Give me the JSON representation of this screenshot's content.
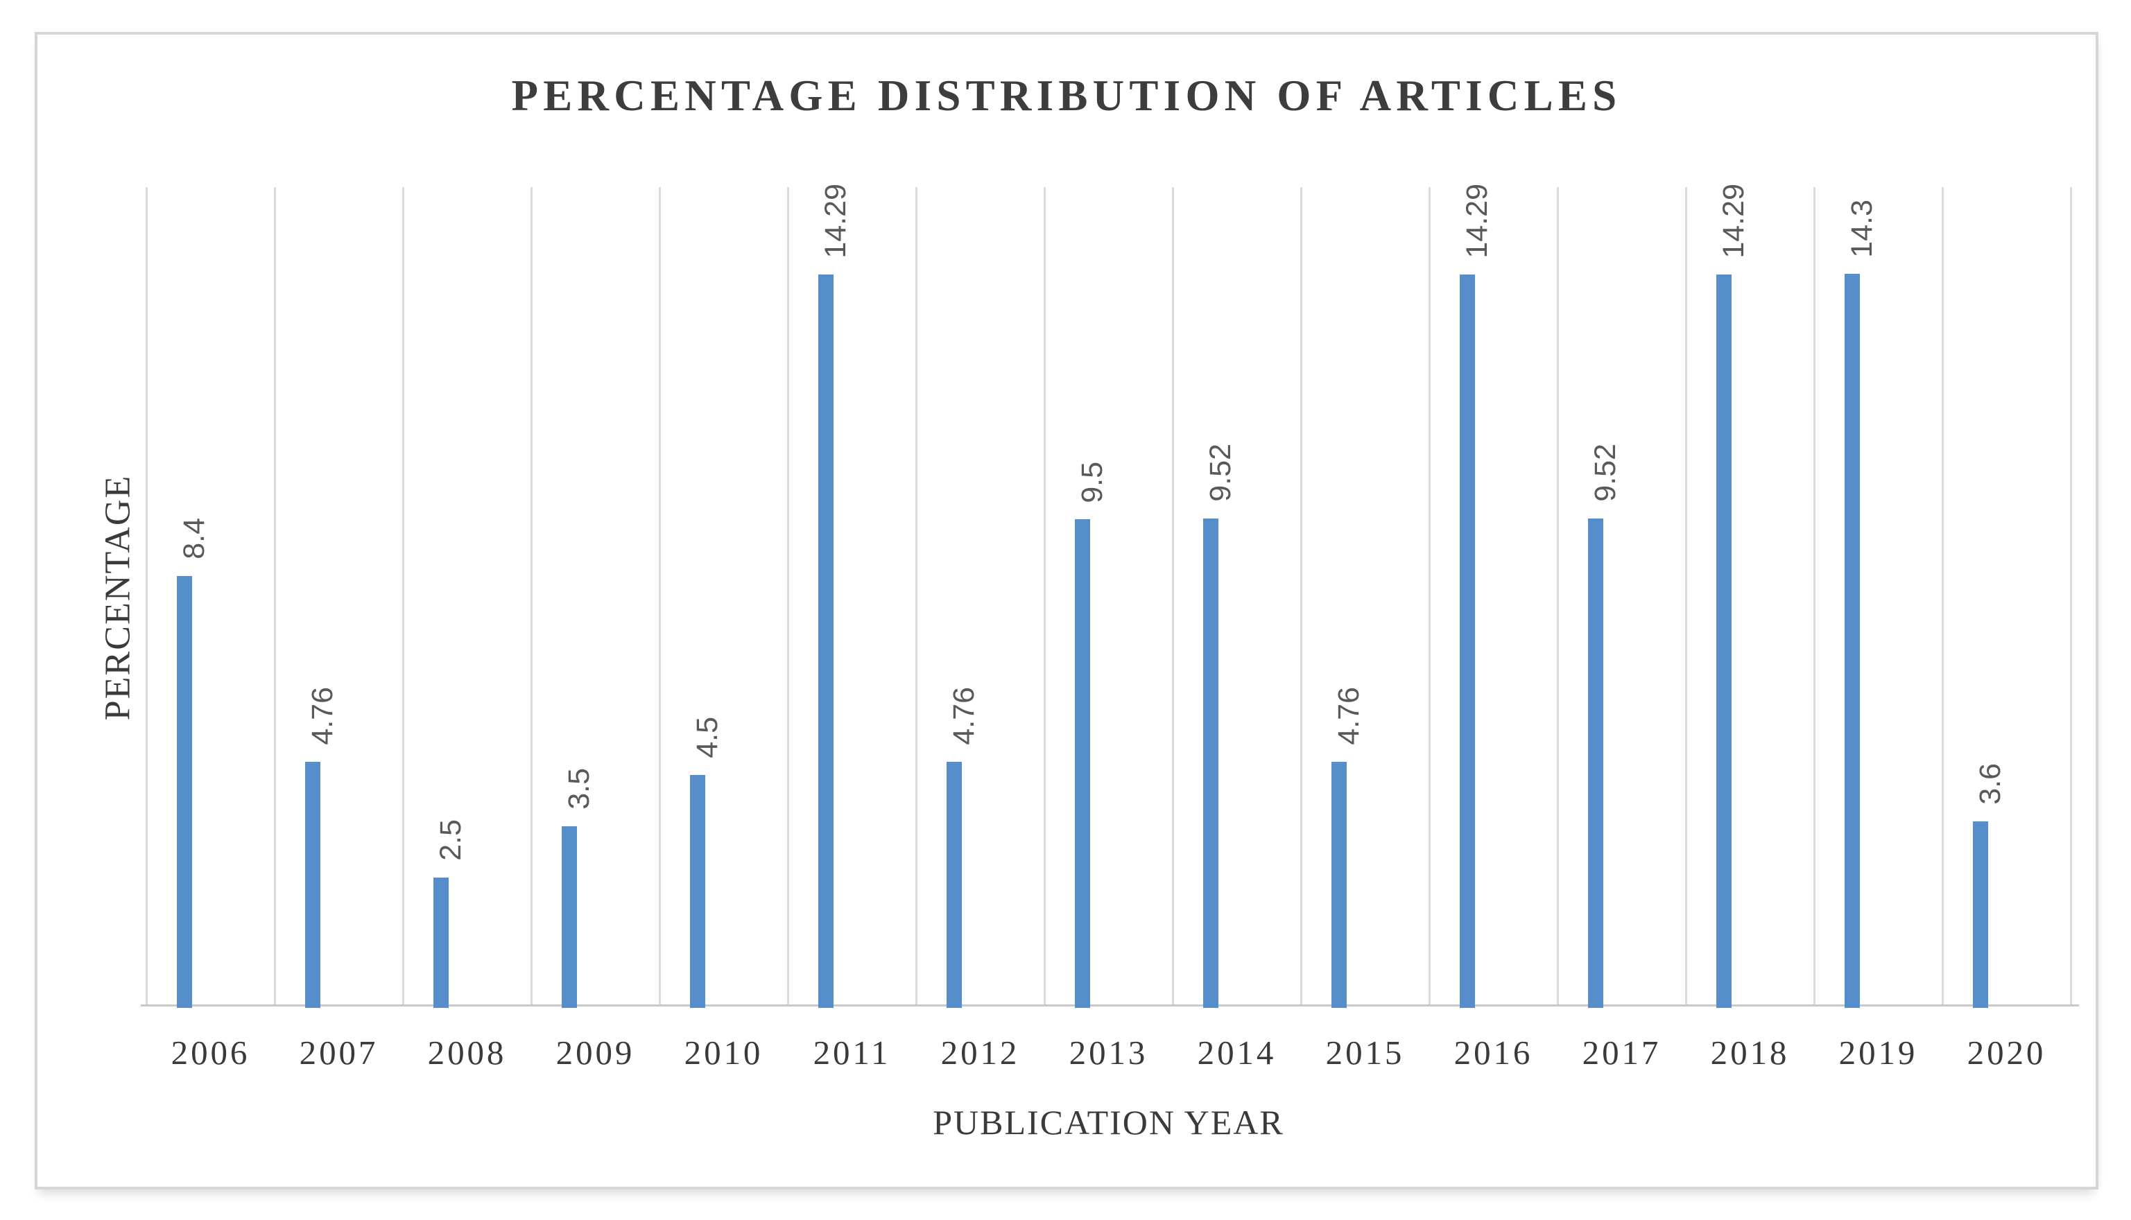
{
  "chart_data": {
    "type": "bar",
    "title": "PERCENTAGE DISTRIBUTION OF ARTICLES",
    "xlabel": "PUBLICATION YEAR",
    "ylabel": "PERCENTAGE",
    "categories": [
      "2006",
      "2007",
      "2008",
      "2009",
      "2010",
      "2011",
      "2012",
      "2013",
      "2014",
      "2015",
      "2016",
      "2017",
      "2018",
      "2019",
      "2020"
    ],
    "values": [
      8.4,
      4.76,
      2.5,
      3.5,
      4.5,
      14.29,
      4.76,
      9.5,
      9.52,
      4.76,
      14.29,
      9.52,
      14.29,
      14.3,
      3.6
    ],
    "data_labels": [
      "8.4",
      "4.76",
      "2.5",
      "3.5",
      "4.5",
      "14.29",
      "4.76",
      "9.5",
      "9.52",
      "4.76",
      "14.29",
      "9.52",
      "14.29",
      "14.3",
      "3.6"
    ],
    "data_label_rotation": 270,
    "ylim": [
      0,
      16
    ],
    "y_tick_labels_visible": false,
    "gridlines": "vertical-category-boundaries",
    "legend": "none"
  },
  "colors": {
    "bar": "#568DCB",
    "gridline": "#DADADA",
    "axis_line": "#C9C9C9",
    "title_text": "#3D3D3D",
    "data_label_text": "#595959",
    "tick_label_text": "#3A3A3A",
    "axis_title_text": "#3A3A3A",
    "frame_border": "#D6D6D6",
    "background": "#FFFFFF"
  }
}
